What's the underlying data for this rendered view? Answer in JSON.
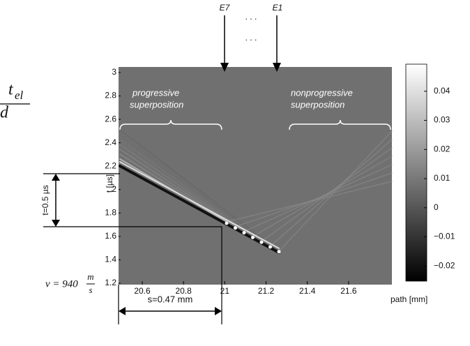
{
  "chart_data": {
    "type": "heatmap",
    "xlabel": "path [mm]",
    "ylabel": "t [µs]",
    "xlim": [
      20.485,
      21.81
    ],
    "xticks": [
      20.6,
      20.8,
      21,
      21.2,
      21.4,
      21.6
    ],
    "ylim": [
      1.2,
      3
    ],
    "yticks": [
      1.2,
      1.4,
      1.6,
      1.8,
      2,
      2.2,
      2.4,
      2.6,
      2.8,
      3
    ],
    "clim": [
      -0.0252,
      0.0493
    ],
    "cticks": [
      {
        "value": -0.02,
        "label": "−0.02"
      },
      {
        "value": -0.01,
        "label": "−0.01"
      },
      0,
      0.01,
      0.02,
      0.03,
      0.04
    ],
    "annotations": {
      "e7": "E7",
      "dots": ". . .",
      "e1": "E1",
      "progressive": [
        "progressive",
        "superposition"
      ],
      "nonprogressive": [
        "nonprogressive",
        "superposition"
      ],
      "t_span": "t=0.5 µs",
      "s_span": "s=0.47 mm",
      "velocity": [
        "v  =  940",
        "m",
        "s"
      ],
      "formula": [
        "t",
        "el",
        "d"
      ]
    }
  }
}
